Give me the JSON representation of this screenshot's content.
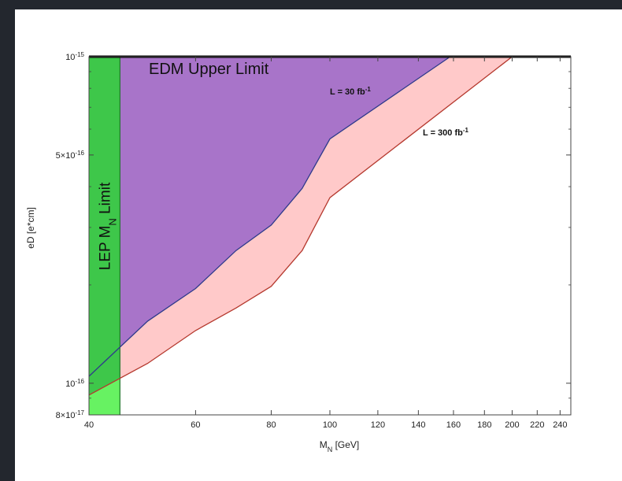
{
  "chart_data": {
    "type": "area",
    "xlabel": {
      "main": "M",
      "sub": "N",
      "unit": " [GeV]"
    },
    "ylabel": "eD [e*cm]",
    "x_scale": "log",
    "y_scale": "log",
    "xlim": [
      40,
      250
    ],
    "ylim": [
      8e-17,
      1e-15
    ],
    "x_ticks": [
      {
        "value": 40,
        "label": "40"
      },
      {
        "value": 60,
        "label": "60"
      },
      {
        "value": 80,
        "label": "80"
      },
      {
        "value": 100,
        "label": "100"
      },
      {
        "value": 120,
        "label": "120"
      },
      {
        "value": 140,
        "label": "140"
      },
      {
        "value": 160,
        "label": "160"
      },
      {
        "value": 180,
        "label": "180"
      },
      {
        "value": 200,
        "label": "200"
      },
      {
        "value": 220,
        "label": "220"
      },
      {
        "value": 240,
        "label": "240"
      }
    ],
    "y_ticks": [
      {
        "value": 1e-15,
        "mant": "10",
        "exp": "-15"
      },
      {
        "value": 5e-16,
        "mant": "5×10",
        "exp": "-16"
      },
      {
        "value": 1e-16,
        "mant": "10",
        "exp": "-16"
      },
      {
        "value": 8e-17,
        "mant": "8×10",
        "exp": "-17"
      }
    ],
    "series": [
      {
        "name": "L = 30 fb-1",
        "label": {
          "text": "L = 30 fb",
          "sup": "-1"
        },
        "color": "#2e3a8c",
        "fill": "#a874c9",
        "x": [
          40,
          50,
          60,
          70,
          80,
          90,
          100,
          158
        ],
        "y": [
          1.05e-16,
          1.55e-16,
          1.95e-16,
          2.55e-16,
          3.05e-16,
          3.95e-16,
          5.6e-16,
          1e-15
        ]
      },
      {
        "name": "L = 300 fb-1",
        "label": {
          "text": "L = 300 fb",
          "sup": "-1"
        },
        "color": "#b5392e",
        "fill": "#ffc9c9",
        "x": [
          40,
          50,
          60,
          70,
          80,
          90,
          100,
          200
        ],
        "y": [
          9.2e-17,
          1.15e-16,
          1.45e-16,
          1.7e-16,
          1.98e-16,
          2.55e-16,
          3.7e-16,
          1e-15
        ]
      }
    ],
    "edm_upper_limit": {
      "value": 1e-15,
      "label": "EDM Upper Limit"
    },
    "lep_limit": {
      "x_max": 45,
      "label": {
        "a": "LEP M",
        "sub": "N",
        "b": " Limit"
      },
      "fill_upper": "#3ec74a",
      "fill_lower": "#67f262"
    }
  }
}
